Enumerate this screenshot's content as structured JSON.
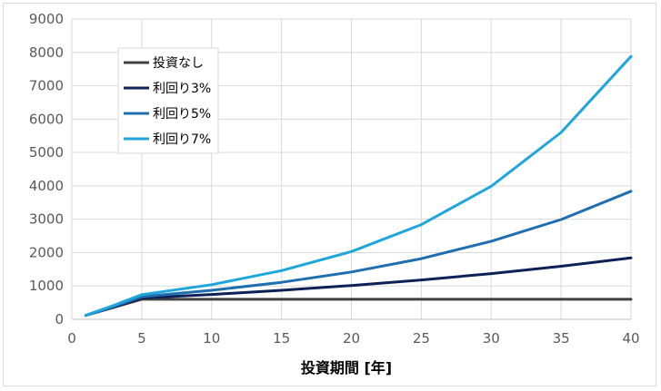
{
  "chart_data": {
    "type": "line",
    "title": "",
    "xlabel": "投資期間 [年]",
    "ylabel": "",
    "xlim": [
      0,
      40
    ],
    "ylim": [
      0,
      9000
    ],
    "xticks": [
      0,
      5,
      10,
      15,
      20,
      25,
      30,
      35,
      40
    ],
    "yticks": [
      0,
      1000,
      2000,
      3000,
      4000,
      5000,
      6000,
      7000,
      8000,
      9000
    ],
    "grid": true,
    "legend_position": "top-left",
    "x": [
      1,
      2,
      3,
      4,
      5,
      10,
      15,
      20,
      25,
      30,
      35,
      40
    ],
    "series": [
      {
        "name": "投資なし",
        "color": "#404040",
        "values": [
          120,
          240,
          360,
          480,
          600,
          600,
          600,
          600,
          600,
          600,
          600,
          600
        ]
      },
      {
        "name": "利回り3%",
        "color": "#0d2157",
        "values": [
          120,
          245,
          370,
          500,
          640,
          745,
          870,
          1015,
          1180,
          1370,
          1590,
          1840
        ]
      },
      {
        "name": "利回り5%",
        "color": "#1f6fb0",
        "values": [
          120,
          250,
          390,
          530,
          680,
          870,
          1110,
          1420,
          1820,
          2340,
          2990,
          3840
        ]
      },
      {
        "name": "利回り7%",
        "color": "#1ea6dc",
        "values": [
          120,
          270,
          420,
          580,
          740,
          1040,
          1460,
          2030,
          2840,
          3990,
          5600,
          7880
        ]
      }
    ]
  }
}
